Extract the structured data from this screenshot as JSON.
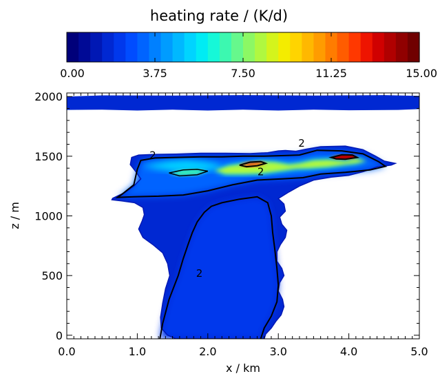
{
  "chart_data": {
    "type": "heatmap",
    "colorbar": {
      "title": "heating rate / (K/d)",
      "range": [
        0,
        15
      ],
      "tick_labels": [
        "0.00",
        "3.75",
        "7.50",
        "11.25",
        "15.00"
      ],
      "tick_values": [
        0,
        3.75,
        7.5,
        11.25,
        15
      ],
      "colors": [
        "#00007a",
        "#000a96",
        "#0018b4",
        "#0028d2",
        "#0038ec",
        "#004cff",
        "#0064ff",
        "#0080ff",
        "#009cff",
        "#00b8ff",
        "#00d4ff",
        "#00ecf4",
        "#16f8d8",
        "#3cf8b0",
        "#66f88c",
        "#8cf864",
        "#b0f840",
        "#d4f41c",
        "#f4ec00",
        "#ffd400",
        "#ffb800",
        "#ff9c00",
        "#ff7c00",
        "#ff5c00",
        "#ff3800",
        "#ee1400",
        "#d00000",
        "#b00000",
        "#900000",
        "#700000"
      ]
    },
    "x_axis": {
      "label": "x / km",
      "range": [
        0,
        5
      ],
      "tick_values": [
        0,
        1,
        2,
        3,
        4,
        5
      ],
      "tick_labels": [
        "0.0",
        "1.0",
        "2.0",
        "3.0",
        "4.0",
        "5.0"
      ]
    },
    "y_axis": {
      "label": "z / m",
      "range": [
        -30,
        2030
      ],
      "tick_values": [
        0,
        500,
        1000,
        1500,
        2000
      ],
      "tick_labels": [
        "0",
        "500",
        "1000",
        "1500",
        "2000"
      ]
    },
    "contour_labels": [
      {
        "text": "2",
        "x": 3.33,
        "y": 1580
      },
      {
        "text": "2",
        "x": 1.22,
        "y": 1480
      },
      {
        "text": "2",
        "x": 2.75,
        "y": 1340
      },
      {
        "text": "2",
        "x": 1.88,
        "y": 490
      }
    ],
    "region_outlines": {
      "top_band": [
        [
          0,
          2000
        ],
        [
          0.5,
          2010
        ],
        [
          1.5,
          2008
        ],
        [
          2.5,
          2012
        ],
        [
          3.5,
          2008
        ],
        [
          4.5,
          2012
        ],
        [
          5,
          2005
        ],
        [
          5,
          1895
        ],
        [
          4.7,
          1888
        ],
        [
          4.0,
          1885
        ],
        [
          3.5,
          1890
        ],
        [
          3.0,
          1883
        ],
        [
          2.5,
          1890
        ],
        [
          2.0,
          1883
        ],
        [
          1.5,
          1890
        ],
        [
          1.0,
          1883
        ],
        [
          0.5,
          1890
        ],
        [
          0,
          1888
        ]
      ],
      "cloud": [
        [
          0.64,
          1135
        ],
        [
          0.65,
          1148
        ],
        [
          0.82,
          1195
        ],
        [
          0.95,
          1250
        ],
        [
          1.05,
          1310
        ],
        [
          0.98,
          1370
        ],
        [
          0.9,
          1430
        ],
        [
          0.92,
          1490
        ],
        [
          1.02,
          1510
        ],
        [
          1.25,
          1515
        ],
        [
          1.55,
          1518
        ],
        [
          1.9,
          1525
        ],
        [
          2.25,
          1525
        ],
        [
          2.6,
          1522
        ],
        [
          2.85,
          1530
        ],
        [
          3.0,
          1545
        ],
        [
          3.1,
          1548
        ],
        [
          3.25,
          1542
        ],
        [
          3.4,
          1560
        ],
        [
          3.6,
          1580
        ],
        [
          3.95,
          1585
        ],
        [
          4.2,
          1555
        ],
        [
          4.38,
          1500
        ],
        [
          4.5,
          1460
        ],
        [
          4.66,
          1440
        ],
        [
          4.6,
          1425
        ],
        [
          4.4,
          1410
        ],
        [
          4.2,
          1370
        ],
        [
          4.0,
          1340
        ],
        [
          3.75,
          1325
        ],
        [
          3.5,
          1300
        ],
        [
          3.3,
          1250
        ],
        [
          3.15,
          1200
        ],
        [
          3.0,
          1145
        ],
        [
          3.08,
          1100
        ],
        [
          3.1,
          1040
        ],
        [
          3.02,
          990
        ],
        [
          3.05,
          930
        ],
        [
          3.12,
          880
        ],
        [
          3.1,
          820
        ],
        [
          3.03,
          760
        ],
        [
          2.98,
          700
        ],
        [
          2.98,
          620
        ],
        [
          3.05,
          560
        ],
        [
          3.08,
          500
        ],
        [
          3.02,
          440
        ],
        [
          3.0,
          370
        ],
        [
          3.06,
          300
        ],
        [
          3.08,
          240
        ],
        [
          3.04,
          170
        ],
        [
          2.97,
          120
        ],
        [
          2.9,
          60
        ],
        [
          2.82,
          10
        ],
        [
          2.8,
          -30
        ],
        [
          1.55,
          -30
        ],
        [
          1.43,
          0
        ],
        [
          1.34,
          60
        ],
        [
          1.33,
          150
        ],
        [
          1.36,
          270
        ],
        [
          1.4,
          390
        ],
        [
          1.46,
          500
        ],
        [
          1.43,
          600
        ],
        [
          1.36,
          690
        ],
        [
          1.22,
          760
        ],
        [
          1.08,
          820
        ],
        [
          1.02,
          890
        ],
        [
          1.07,
          960
        ],
        [
          1.1,
          1010
        ],
        [
          1.08,
          1070
        ],
        [
          0.96,
          1110
        ],
        [
          0.78,
          1125
        ]
      ],
      "inner_contour": [
        [
          1.32,
          -30
        ],
        [
          1.36,
          100
        ],
        [
          1.45,
          300
        ],
        [
          1.58,
          500
        ],
        [
          1.65,
          640
        ],
        [
          1.72,
          760
        ],
        [
          1.78,
          860
        ],
        [
          1.85,
          950
        ],
        [
          1.95,
          1030
        ],
        [
          2.05,
          1080
        ],
        [
          2.2,
          1110
        ],
        [
          2.45,
          1140
        ],
        [
          2.7,
          1160
        ],
        [
          2.85,
          1110
        ],
        [
          2.9,
          1000
        ],
        [
          2.92,
          860
        ],
        [
          2.95,
          720
        ],
        [
          2.98,
          560
        ],
        [
          3.0,
          420
        ],
        [
          2.98,
          280
        ],
        [
          2.9,
          160
        ],
        [
          2.8,
          60
        ],
        [
          2.75,
          -30
        ]
      ],
      "upper_contour": [
        [
          0.72,
          1155
        ],
        [
          0.95,
          1160
        ],
        [
          1.3,
          1165
        ],
        [
          1.65,
          1175
        ],
        [
          2.0,
          1210
        ],
        [
          2.35,
          1260
        ],
        [
          2.7,
          1300
        ],
        [
          3.05,
          1310
        ],
        [
          3.35,
          1320
        ],
        [
          3.6,
          1350
        ],
        [
          3.95,
          1365
        ],
        [
          4.3,
          1385
        ],
        [
          4.52,
          1415
        ],
        [
          4.42,
          1455
        ],
        [
          4.2,
          1520
        ],
        [
          3.9,
          1545
        ],
        [
          3.55,
          1550
        ],
        [
          3.3,
          1510
        ],
        [
          3.05,
          1505
        ],
        [
          2.8,
          1500
        ],
        [
          2.5,
          1500
        ],
        [
          2.2,
          1495
        ],
        [
          1.9,
          1495
        ],
        [
          1.55,
          1490
        ],
        [
          1.25,
          1485
        ],
        [
          1.05,
          1465
        ],
        [
          1.0,
          1390
        ],
        [
          0.95,
          1260
        ],
        [
          0.78,
          1180
        ]
      ],
      "hot_a": [
        [
          2.1,
          1380
        ],
        [
          2.3,
          1420
        ],
        [
          2.55,
          1440
        ],
        [
          2.75,
          1455
        ],
        [
          2.95,
          1450
        ],
        [
          3.15,
          1430
        ],
        [
          3.3,
          1440
        ],
        [
          3.5,
          1465
        ],
        [
          3.7,
          1470
        ],
        [
          3.95,
          1460
        ],
        [
          4.1,
          1480
        ],
        [
          4.25,
          1460
        ],
        [
          4.1,
          1440
        ],
        [
          3.9,
          1425
        ],
        [
          3.7,
          1410
        ],
        [
          3.45,
          1400
        ],
        [
          3.25,
          1395
        ],
        [
          3.0,
          1375
        ],
        [
          2.75,
          1355
        ],
        [
          2.5,
          1350
        ],
        [
          2.25,
          1350
        ]
      ],
      "hot_b": [
        [
          1.05,
          1420
        ],
        [
          1.25,
          1440
        ],
        [
          1.45,
          1460
        ],
        [
          1.7,
          1470
        ],
        [
          1.95,
          1455
        ],
        [
          2.15,
          1430
        ],
        [
          2.2,
          1400
        ],
        [
          2.0,
          1380
        ],
        [
          1.75,
          1370
        ],
        [
          1.5,
          1375
        ],
        [
          1.25,
          1395
        ]
      ],
      "hot_c": [
        [
          1.45,
          1360
        ],
        [
          1.65,
          1385
        ],
        [
          1.85,
          1390
        ],
        [
          2.0,
          1375
        ],
        [
          1.85,
          1345
        ],
        [
          1.6,
          1335
        ]
      ],
      "red_a": [
        [
          2.45,
          1425
        ],
        [
          2.6,
          1450
        ],
        [
          2.75,
          1455
        ],
        [
          2.82,
          1440
        ],
        [
          2.7,
          1420
        ],
        [
          2.55,
          1412
        ]
      ],
      "red_b": [
        [
          3.75,
          1490
        ],
        [
          3.9,
          1512
        ],
        [
          4.05,
          1510
        ],
        [
          4.12,
          1490
        ],
        [
          3.95,
          1475
        ],
        [
          3.82,
          1478
        ]
      ]
    }
  }
}
